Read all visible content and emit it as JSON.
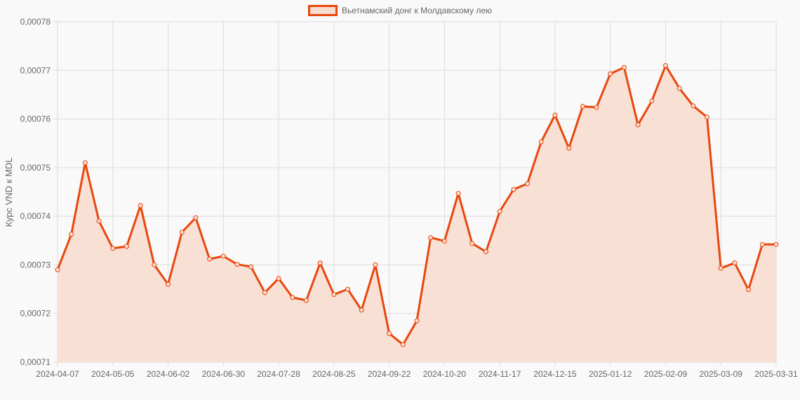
{
  "legend": {
    "label": "Вьетнамский донг к Молдавскому лею"
  },
  "colors": {
    "line": "#e8470d",
    "fill": "#f8dccf",
    "grid": "#dcdcdc",
    "background": "#f9f9f9"
  },
  "chart_data": {
    "type": "line",
    "title": "",
    "xlabel": "",
    "ylabel": "Курс VND к MDL",
    "ylim": [
      0.00071,
      0.00078
    ],
    "y_ticks": [
      "0,00078",
      "0,00077",
      "0,00076",
      "0,00075",
      "0,00074",
      "0,00073",
      "0,00072",
      "0,00071"
    ],
    "x_tick_labels": [
      "2024-04-07",
      "2024-05-05",
      "2024-06-02",
      "2024-06-30",
      "2024-07-28",
      "2024-08-25",
      "2024-09-22",
      "2024-10-20",
      "2024-11-17",
      "2024-12-15",
      "2025-01-12",
      "2025-02-09",
      "2025-03-09",
      "2025-03-31"
    ],
    "grid": true,
    "legend_position": "top",
    "fill": true,
    "series": [
      {
        "name": "Вьетнамский донг к Молдавскому лею",
        "values": [
          0.000729,
          0.0007363,
          0.000751,
          0.000739,
          0.0007334,
          0.0007338,
          0.0007422,
          0.00073,
          0.000726,
          0.0007367,
          0.0007397,
          0.0007312,
          0.0007318,
          0.0007301,
          0.0007296,
          0.0007243,
          0.0007272,
          0.0007233,
          0.0007227,
          0.0007304,
          0.0007239,
          0.000725,
          0.0007207,
          0.00073,
          0.0007159,
          0.0007136,
          0.0007185,
          0.0007356,
          0.0007349,
          0.0007447,
          0.0007344,
          0.0007327,
          0.000741,
          0.0007455,
          0.0007467,
          0.0007553,
          0.0007608,
          0.000754,
          0.0007626,
          0.0007624,
          0.0007693,
          0.0007706,
          0.0007588,
          0.0007637,
          0.000771,
          0.0007663,
          0.0007627,
          0.0007604,
          0.0007293,
          0.0007304,
          0.0007249,
          0.0007342,
          0.0007342
        ]
      }
    ]
  }
}
